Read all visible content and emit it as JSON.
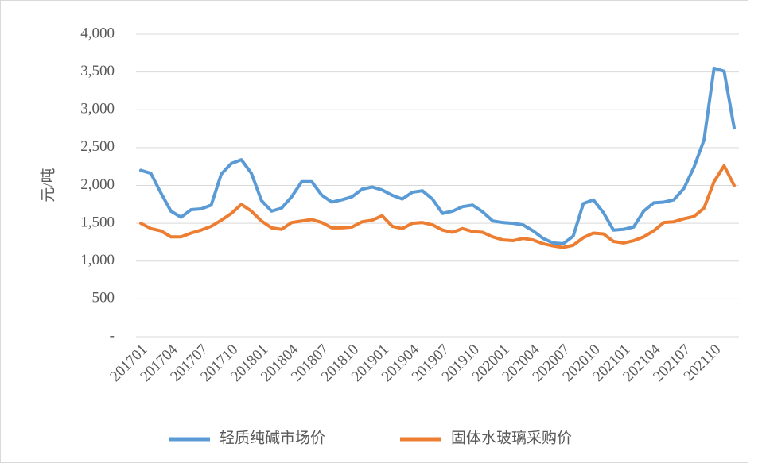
{
  "chart_data": {
    "type": "line",
    "y_label": "元/吨",
    "categories": [
      "201701",
      null,
      null,
      "201704",
      null,
      null,
      "201707",
      null,
      null,
      "201710",
      null,
      null,
      "201801",
      null,
      null,
      "201804",
      null,
      null,
      "201807",
      null,
      null,
      "201810",
      null,
      null,
      "201901",
      null,
      null,
      "201904",
      null,
      null,
      "201907",
      null,
      null,
      "201910",
      null,
      null,
      "202001",
      null,
      null,
      "202004",
      null,
      null,
      "202007",
      null,
      null,
      "202010",
      null,
      null,
      "202101",
      null,
      null,
      "202104",
      null,
      null,
      "202107",
      null,
      null,
      "202110",
      null,
      null
    ],
    "series": [
      {
        "name": "轻质纯碱市场价",
        "color": "#5b9bd5",
        "values": [
          2200,
          2160,
          1900,
          1660,
          1580,
          1680,
          1690,
          1740,
          2150,
          2290,
          2340,
          2160,
          1800,
          1660,
          1700,
          1850,
          2050,
          2050,
          1870,
          1780,
          1810,
          1850,
          1950,
          1980,
          1940,
          1870,
          1820,
          1910,
          1930,
          1820,
          1630,
          1660,
          1720,
          1740,
          1650,
          1530,
          1510,
          1500,
          1480,
          1400,
          1300,
          1240,
          1230,
          1330,
          1760,
          1810,
          1640,
          1410,
          1420,
          1450,
          1660,
          1770,
          1780,
          1810,
          1960,
          2240,
          2600,
          3550,
          3510,
          2760
        ]
      },
      {
        "name": "固体水玻璃采购价",
        "color": "#ed7d31",
        "values": [
          1500,
          1430,
          1400,
          1320,
          1320,
          1370,
          1410,
          1460,
          1540,
          1630,
          1750,
          1660,
          1530,
          1440,
          1420,
          1510,
          1530,
          1550,
          1510,
          1440,
          1440,
          1450,
          1520,
          1540,
          1600,
          1460,
          1430,
          1500,
          1510,
          1480,
          1410,
          1380,
          1430,
          1390,
          1380,
          1320,
          1280,
          1270,
          1300,
          1280,
          1230,
          1200,
          1180,
          1210,
          1310,
          1370,
          1360,
          1260,
          1240,
          1270,
          1320,
          1400,
          1510,
          1520,
          1560,
          1590,
          1700,
          2050,
          2260,
          2000
        ]
      }
    ],
    "ylim": [
      0,
      4000
    ],
    "yticks": [
      {
        "value": 0,
        "label": "-"
      },
      500,
      {
        "value": 1000,
        "label": "1,000"
      },
      {
        "value": 1500,
        "label": "1,500"
      },
      {
        "value": 2000,
        "label": "2,000"
      },
      {
        "value": 2500,
        "label": "2,500"
      },
      {
        "value": 3000,
        "label": "3,000"
      },
      {
        "value": 3500,
        "label": "3,500"
      },
      {
        "value": 4000,
        "label": "4,000"
      }
    ],
    "grid": true,
    "legend": "bottom"
  }
}
